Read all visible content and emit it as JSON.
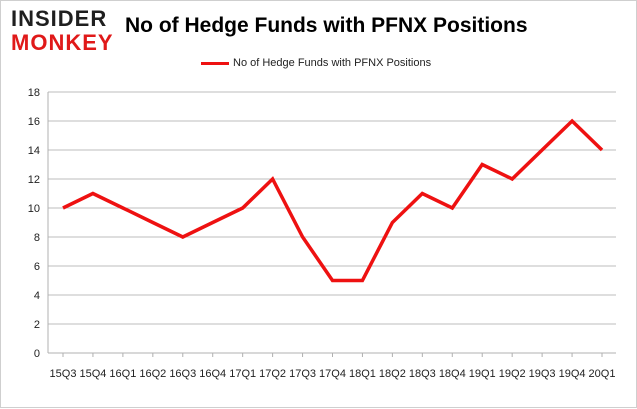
{
  "logo": {
    "line1": "INSIDER",
    "line2": "MONKEY"
  },
  "colors": {
    "series": "#ee1111",
    "grid": "#bdbdbd",
    "axis": "#b0b0b0"
  },
  "chart_data": {
    "type": "line",
    "title": "No of Hedge Funds with PFNX Positions",
    "xlabel": "",
    "ylabel": "",
    "ylim": [
      0,
      18
    ],
    "yticks": [
      0,
      2,
      4,
      6,
      8,
      10,
      12,
      14,
      16,
      18
    ],
    "grid": true,
    "legend_position": "top-center",
    "categories": [
      "15Q3",
      "15Q4",
      "16Q1",
      "16Q2",
      "16Q3",
      "16Q4",
      "17Q1",
      "17Q2",
      "17Q3",
      "17Q4",
      "18Q1",
      "18Q2",
      "18Q3",
      "18Q4",
      "19Q1",
      "19Q2",
      "19Q3",
      "19Q4",
      "20Q1"
    ],
    "series": [
      {
        "name": "No of Hedge Funds with PFNX Positions",
        "values": [
          10,
          11,
          10,
          9,
          8,
          9,
          10,
          12,
          8,
          5,
          5,
          9,
          11,
          10,
          13,
          12,
          14,
          16,
          14
        ]
      }
    ]
  }
}
